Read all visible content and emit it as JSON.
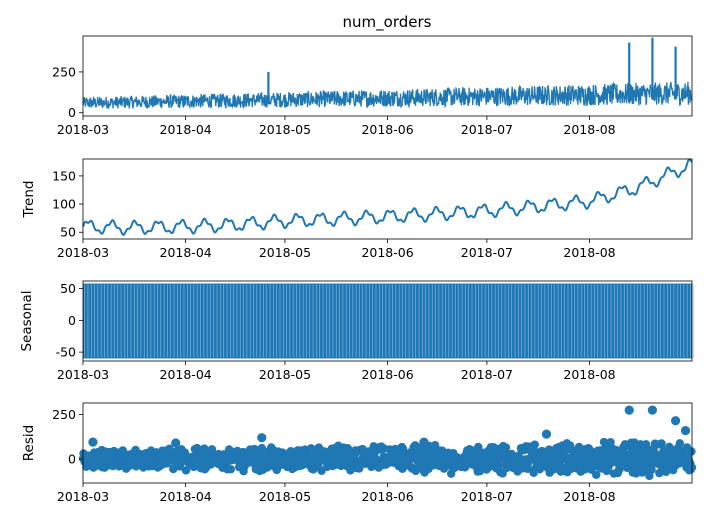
{
  "series_color": "#1f77b4",
  "x_domain": [
    "2018-03-01",
    "2018-08-31 23:00"
  ],
  "x_ticks": [
    "2018-03",
    "2018-04",
    "2018-05",
    "2018-06",
    "2018-07",
    "2018-08"
  ],
  "chart_data": [
    {
      "type": "line",
      "title": "num_orders",
      "ylabel": "",
      "ylim": [
        -20,
        470
      ],
      "yticks": [
        0,
        250
      ],
      "baseline_start": 60,
      "baseline_end": 120,
      "spread": 60,
      "spikes": [
        {
          "x": "2018-04-26",
          "y": 250
        },
        {
          "x": "2018-08-13",
          "y": 430
        },
        {
          "x": "2018-08-20",
          "y": 460
        },
        {
          "x": "2018-08-27",
          "y": 405
        }
      ]
    },
    {
      "type": "line",
      "title": "",
      "ylabel": "Trend",
      "ylim": [
        38,
        180
      ],
      "yticks": [
        50,
        100,
        150
      ],
      "points": [
        {
          "x": "2018-03-01",
          "y": 60
        },
        {
          "x": "2018-03-15",
          "y": 58
        },
        {
          "x": "2018-04-01",
          "y": 60
        },
        {
          "x": "2018-04-15",
          "y": 63
        },
        {
          "x": "2018-05-01",
          "y": 70
        },
        {
          "x": "2018-05-15",
          "y": 73
        },
        {
          "x": "2018-06-01",
          "y": 78
        },
        {
          "x": "2018-06-15",
          "y": 82
        },
        {
          "x": "2018-07-01",
          "y": 88
        },
        {
          "x": "2018-07-15",
          "y": 95
        },
        {
          "x": "2018-08-01",
          "y": 105
        },
        {
          "x": "2018-08-15",
          "y": 128
        },
        {
          "x": "2018-08-31",
          "y": 168
        }
      ],
      "daily_amplitude": 10
    },
    {
      "type": "line",
      "title": "",
      "ylabel": "Seasonal",
      "ylim": [
        -64,
        62
      ],
      "yticks": [
        -50,
        0,
        50
      ],
      "amplitude_high": 58,
      "amplitude_low": -60,
      "period_hours": 24
    },
    {
      "type": "scatter",
      "title": "",
      "ylabel": "Resid",
      "ylim": [
        -135,
        315
      ],
      "yticks": [
        0,
        250
      ],
      "spread_start": 60,
      "spread_end": 110,
      "outliers": [
        {
          "x": "2018-03-04",
          "y": 95
        },
        {
          "x": "2018-03-29",
          "y": 90
        },
        {
          "x": "2018-04-24",
          "y": 120
        },
        {
          "x": "2018-06-12",
          "y": 95
        },
        {
          "x": "2018-07-19",
          "y": 140
        },
        {
          "x": "2018-08-13",
          "y": 275
        },
        {
          "x": "2018-08-20",
          "y": 275
        },
        {
          "x": "2018-08-27",
          "y": 215
        },
        {
          "x": "2018-08-30",
          "y": 160
        }
      ]
    }
  ]
}
